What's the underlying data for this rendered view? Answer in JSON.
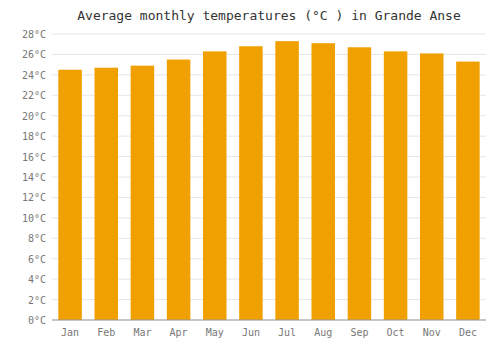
{
  "chart_data": {
    "type": "bar",
    "title": "Average monthly temperatures (°C ) in Grande Anse",
    "categories": [
      "Jan",
      "Feb",
      "Mar",
      "Apr",
      "May",
      "Jun",
      "Jul",
      "Aug",
      "Sep",
      "Oct",
      "Nov",
      "Dec"
    ],
    "values": [
      24.5,
      24.7,
      24.9,
      25.5,
      26.3,
      26.8,
      27.3,
      27.1,
      26.7,
      26.3,
      26.1,
      25.3
    ],
    "color": "#F0A000",
    "ylim": [
      0,
      28
    ],
    "yticks": [
      {
        "value": 0,
        "label": "0°C"
      },
      {
        "value": 2,
        "label": "2°C"
      },
      {
        "value": 4,
        "label": "4°C"
      },
      {
        "value": 6,
        "label": "6°C"
      },
      {
        "value": 8,
        "label": "8°C"
      },
      {
        "value": 10,
        "label": "10°C"
      },
      {
        "value": 12,
        "label": "12°C"
      },
      {
        "value": 14,
        "label": "14°C"
      },
      {
        "value": 16,
        "label": "16°C"
      },
      {
        "value": 18,
        "label": "18°C"
      },
      {
        "value": 20,
        "label": "20°C"
      },
      {
        "value": 22,
        "label": "22°C"
      },
      {
        "value": 24,
        "label": "24°C"
      },
      {
        "value": 26,
        "label": "26°C"
      },
      {
        "value": 28,
        "label": "28°C"
      }
    ],
    "grid": true
  }
}
